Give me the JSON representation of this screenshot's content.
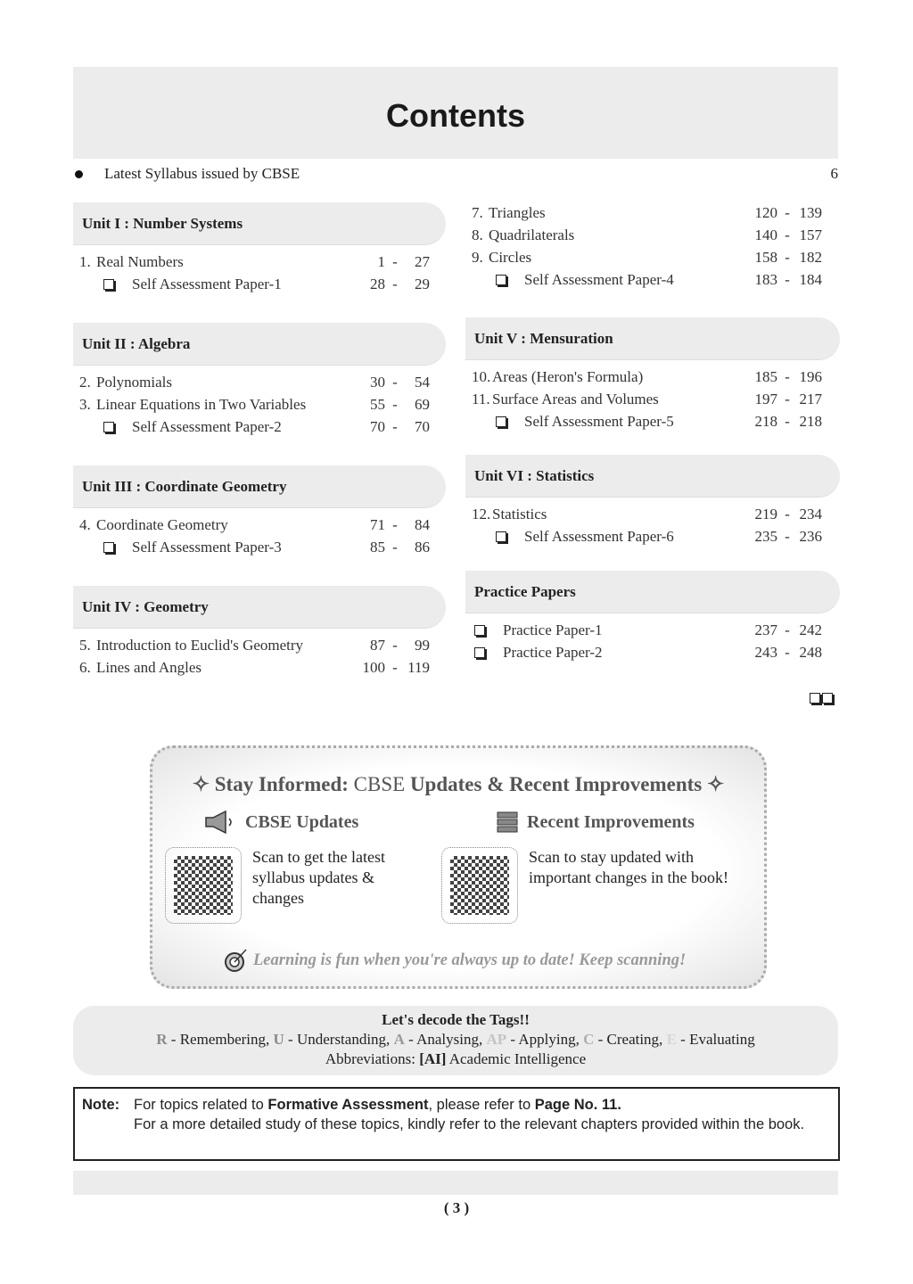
{
  "title": "Contents",
  "syllabus": {
    "label": "Latest Syllabus issued by CBSE",
    "page": "6"
  },
  "left": [
    {
      "unit": "Unit I : Number Systems",
      "items": [
        {
          "num": "1.",
          "label": "Real Numbers",
          "from": "1",
          "to": "27"
        },
        {
          "sa": true,
          "label": "Self Assessment Paper-1",
          "from": "28",
          "to": "29"
        }
      ]
    },
    {
      "unit": "Unit II : Algebra",
      "items": [
        {
          "num": "2.",
          "label": "Polynomials",
          "from": "30",
          "to": "54"
        },
        {
          "num": "3.",
          "label": "Linear Equations in Two Variables",
          "from": "55",
          "to": "69"
        },
        {
          "sa": true,
          "label": "Self Assessment Paper-2",
          "from": "70",
          "to": "70"
        }
      ]
    },
    {
      "unit": "Unit III : Coordinate Geometry",
      "items": [
        {
          "num": "4.",
          "label": "Coordinate Geometry",
          "from": "71",
          "to": "84"
        },
        {
          "sa": true,
          "label": "Self Assessment Paper-3",
          "from": "85",
          "to": "86"
        }
      ]
    },
    {
      "unit": "Unit IV : Geometry",
      "items": [
        {
          "num": "5.",
          "label": "Introduction to Euclid's Geometry",
          "from": "87",
          "to": "99"
        },
        {
          "num": "6.",
          "label": "Lines and Angles",
          "from": "100",
          "to": "119"
        }
      ]
    }
  ],
  "right": [
    {
      "unit": "",
      "items": [
        {
          "num": "7.",
          "label": "Triangles",
          "from": "120",
          "to": "139"
        },
        {
          "num": "8.",
          "label": "Quadrilaterals",
          "from": "140",
          "to": "157"
        },
        {
          "num": "9.",
          "label": "Circles",
          "from": "158",
          "to": "182"
        },
        {
          "sa": true,
          "label": "Self Assessment Paper-4",
          "from": "183",
          "to": "184"
        }
      ]
    },
    {
      "unit": "Unit  V : Mensuration",
      "items": [
        {
          "num": "10.",
          "label": "Areas (Heron's Formula)",
          "from": "185",
          "to": "196"
        },
        {
          "num": "11.",
          "label": "Surface Areas and Volumes",
          "from": "197",
          "to": "217"
        },
        {
          "sa": true,
          "label": "Self Assessment Paper-5",
          "from": "218",
          "to": "218"
        }
      ]
    },
    {
      "unit": "Unit  VI : Statistics",
      "items": [
        {
          "num": "12.",
          "label": "Statistics",
          "from": "219",
          "to": "234"
        },
        {
          "sa": true,
          "label": "Self Assessment Paper-6",
          "from": "235",
          "to": "236"
        }
      ]
    },
    {
      "unit": "Practice Papers",
      "items": [
        {
          "pp": true,
          "label": "Practice Paper-1",
          "from": "237",
          "to": "242"
        },
        {
          "pp": true,
          "label": "Practice Paper-2",
          "from": "243",
          "to": "248"
        }
      ]
    }
  ],
  "promo": {
    "title_a": "Stay Informed:",
    "title_b": "CBSE",
    "title_c": "Updates & Recent Improvements",
    "cbse_updates": "CBSE Updates",
    "cbse_text": "Scan to get the latest syllabus updates & changes",
    "recent": "Recent Improvements",
    "recent_text": "Scan to stay updated with important changes in the book!",
    "tagline": "Learning is fun when you're always up to date! Keep scanning!"
  },
  "tags": {
    "heading": "Let's decode the Tags!!",
    "list": [
      {
        "code": "R",
        "label": " - Remembering, ",
        "color": "#8a8a8a"
      },
      {
        "code": "U",
        "label": " - Understanding, ",
        "color": "#8a8a8a"
      },
      {
        "code": "A",
        "label": " - Analysing, ",
        "color": "#9a9a9a"
      },
      {
        "code": "AP",
        "label": " - Applying, ",
        "color": "#c4c4c4"
      },
      {
        "code": "C",
        "label": " - Creating, ",
        "color": "#b0b0b0"
      },
      {
        "code": "E",
        "label": " - Evaluating",
        "color": "#d6d6d6"
      }
    ],
    "abbr_label": "Abbreviations: ",
    "abbr_code": "[AI]",
    "abbr_text": " Academic Intelligence"
  },
  "note": {
    "label": "Note:",
    "l1a": "For topics related to ",
    "l1b": "Formative Assessment",
    "l1c": ", please refer to ",
    "l1d": "Page No. 11",
    "l1e": ".",
    "l2": "For a more detailed study of these topics, kindly refer to the relevant chapters provided within the book."
  },
  "page_number": "( 3 )"
}
